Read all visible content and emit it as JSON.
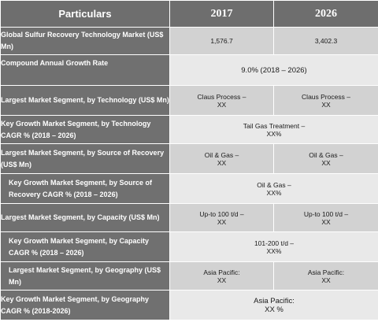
{
  "header": {
    "particulars": "Particulars",
    "y2017": "2017",
    "y2026": "2026"
  },
  "rows": [
    {
      "label": "Global Sulfur Recovery Technology Market (US$ Mn)",
      "v2017": "1,576.7",
      "v2026": "3,402.3"
    },
    {
      "label": "Compound Annual Growth Rate",
      "merged": "9.0% (2018 – 2026)"
    },
    {
      "label": "Largest Market Segment, by Technology (US$ Mn)",
      "v2017": [
        "Claus Process –",
        "XX"
      ],
      "v2026": [
        "Claus Process –",
        "XX"
      ]
    },
    {
      "label": "Key Growth Market Segment, by Technology CAGR % (2018 – 2026)",
      "merged": [
        "Tail Gas Treatment –",
        "XX%"
      ]
    },
    {
      "label": "Largest Market Segment, by Source of Recovery (US$ Mn)",
      "v2017": [
        "Oil & Gas –",
        "XX"
      ],
      "v2026": [
        "Oil & Gas –",
        "XX"
      ]
    },
    {
      "label": "Key Growth Market Segment, by Source of Recovery CAGR % (2018 – 2026)",
      "merged": [
        "Oil & Gas –",
        "XX%"
      ]
    },
    {
      "label": "Largest Market Segment, by Capacity (US$ Mn)",
      "v2017": [
        "Up-to 100 t/d –",
        "XX"
      ],
      "v2026": [
        "Up-to 100 t/d –",
        "XX"
      ]
    },
    {
      "label": "Key Growth Market Segment, by Capacity CAGR % (2018 – 2026)",
      "merged": [
        "101-200 t/d –",
        "XX%"
      ]
    },
    {
      "label": "Largest Market Segment, by Geography (US$ Mn)",
      "v2017": [
        "Asia Pacific:",
        "XX"
      ],
      "v2026": [
        "Asia Pacific:",
        "XX"
      ]
    },
    {
      "label": "Key Growth Market Segment, by Geography CAGR % (2018-2026)",
      "merged": [
        "Asia Pacific:",
        "XX %"
      ]
    }
  ]
}
